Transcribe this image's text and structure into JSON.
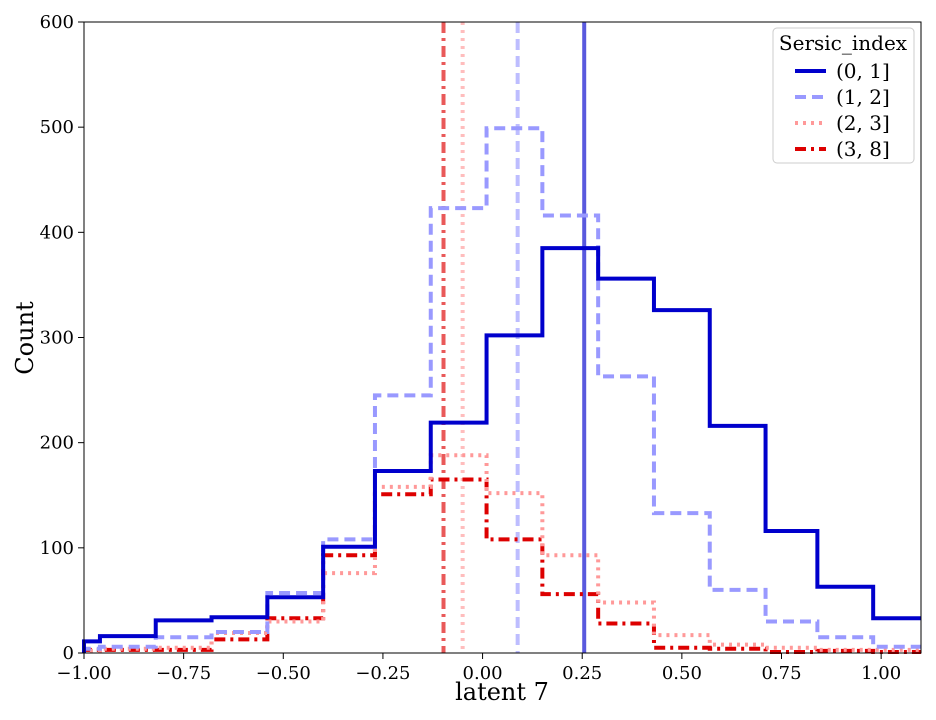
{
  "chart_data": {
    "type": "histogram",
    "xlabel": "latent 7",
    "ylabel": "Count",
    "xlim": [
      -1.0,
      1.1
    ],
    "ylim": [
      0,
      600
    ],
    "x_ticks": [
      "−1.00",
      "−0.75",
      "−0.50",
      "−0.25",
      "0.00",
      "0.25",
      "0.50",
      "0.75",
      "1.00"
    ],
    "x_tick_values": [
      -1.0,
      -0.75,
      -0.5,
      -0.25,
      0.0,
      0.25,
      0.5,
      0.75,
      1.0
    ],
    "y_ticks": [
      "0",
      "100",
      "200",
      "300",
      "400",
      "500",
      "600"
    ],
    "y_tick_values": [
      0,
      100,
      200,
      300,
      400,
      500,
      600
    ],
    "grid": false,
    "legend": {
      "title": "Sersic_index",
      "placement": "top-right"
    },
    "series": [
      {
        "name": "(0, 1]",
        "color": "#0000cc",
        "style": "solid",
        "edges": [
          -1.0,
          -0.96,
          -0.82,
          -0.68,
          -0.54,
          -0.4,
          -0.27,
          -0.13,
          0.01,
          0.15,
          0.29,
          0.43,
          0.57,
          0.71,
          0.84,
          0.98,
          1.1
        ],
        "counts": [
          11,
          16,
          31,
          34,
          53,
          101,
          173,
          219,
          302,
          385,
          356,
          326,
          216,
          116,
          63,
          33
        ],
        "median": 0.255
      },
      {
        "name": "(1, 2]",
        "color": "#9999ff",
        "style": "dashed",
        "edges": [
          -1.0,
          -0.96,
          -0.82,
          -0.68,
          -0.54,
          -0.4,
          -0.27,
          -0.13,
          0.01,
          0.15,
          0.29,
          0.43,
          0.57,
          0.71,
          0.84,
          0.98,
          1.1
        ],
        "counts": [
          4,
          6,
          15,
          20,
          57,
          108,
          245,
          423,
          499,
          416,
          263,
          133,
          60,
          30,
          15,
          6
        ],
        "median": 0.088
      },
      {
        "name": "(2, 3]",
        "color": "#ff9999",
        "style": "dotted",
        "edges": [
          -1.0,
          -0.96,
          -0.82,
          -0.68,
          -0.54,
          -0.4,
          -0.27,
          -0.13,
          0.01,
          0.15,
          0.29,
          0.43,
          0.57,
          0.71,
          0.84,
          0.98,
          1.1
        ],
        "counts": [
          2,
          4,
          5,
          19,
          30,
          76,
          158,
          188,
          152,
          93,
          48,
          17,
          8,
          5,
          3,
          3
        ],
        "median": -0.05
      },
      {
        "name": "(3, 8]",
        "color": "#dd0000",
        "style": "dashdot",
        "edges": [
          -1.0,
          -0.96,
          -0.82,
          -0.68,
          -0.54,
          -0.4,
          -0.27,
          -0.13,
          0.01,
          0.15,
          0.29,
          0.43,
          0.57,
          0.71,
          0.84,
          0.98,
          1.1
        ],
        "counts": [
          3,
          3,
          3,
          13,
          33,
          93,
          151,
          165,
          108,
          56,
          28,
          5,
          4,
          1,
          2,
          1
        ],
        "median": -0.098
      }
    ]
  }
}
